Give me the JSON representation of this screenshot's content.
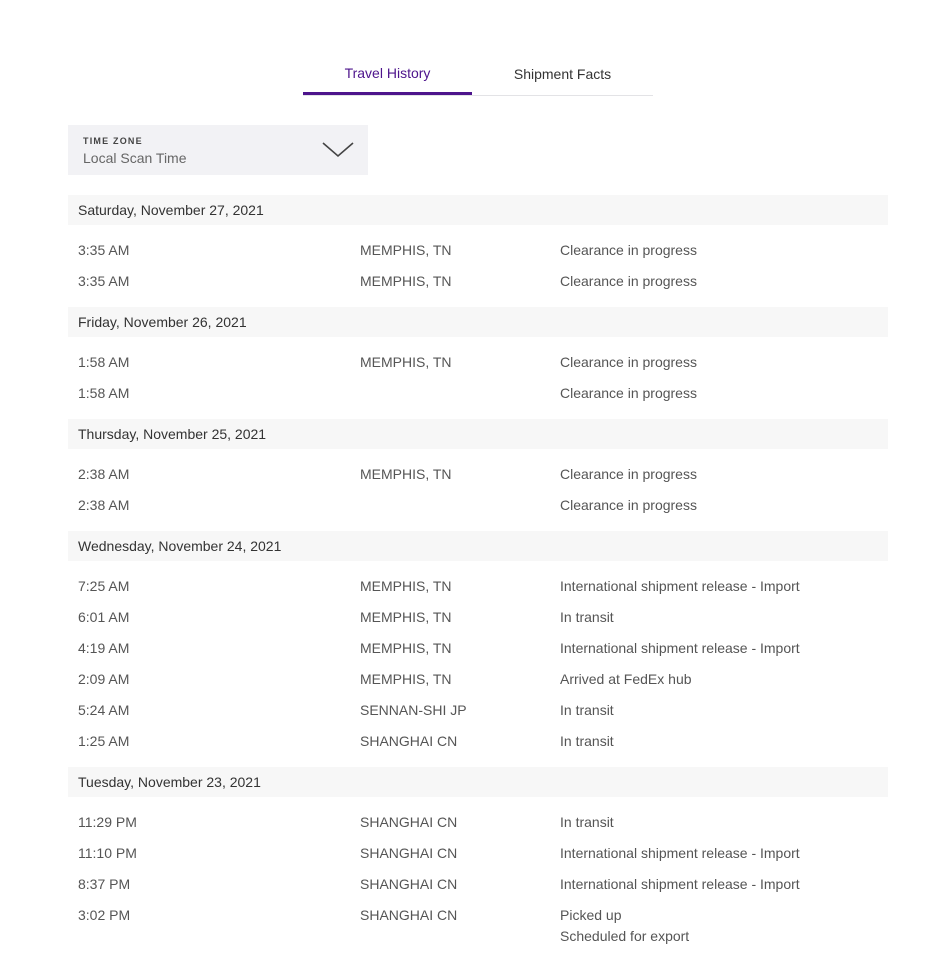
{
  "tabs": [
    {
      "label": "Travel History",
      "active": true
    },
    {
      "label": "Shipment Facts",
      "active": false
    }
  ],
  "timezone": {
    "label": "TIME ZONE",
    "value": "Local Scan Time",
    "icon": "chevron-down-icon"
  },
  "colors": {
    "accent": "#4d148c",
    "header_bg": "#f7f7f7",
    "dropdown_bg": "#f2f2f5"
  },
  "days": [
    {
      "date": "Saturday, November 27, 2021",
      "events": [
        {
          "time": "3:35 AM",
          "location": "MEMPHIS, TN",
          "status": [
            "Clearance in progress"
          ]
        },
        {
          "time": "3:35 AM",
          "location": "MEMPHIS, TN",
          "status": [
            "Clearance in progress"
          ]
        }
      ]
    },
    {
      "date": "Friday, November 26, 2021",
      "events": [
        {
          "time": "1:58 AM",
          "location": "MEMPHIS, TN",
          "status": [
            "Clearance in progress"
          ]
        },
        {
          "time": "1:58 AM",
          "location": "",
          "status": [
            "Clearance in progress"
          ]
        }
      ]
    },
    {
      "date": "Thursday, November 25, 2021",
      "events": [
        {
          "time": "2:38 AM",
          "location": "MEMPHIS, TN",
          "status": [
            "Clearance in progress"
          ]
        },
        {
          "time": "2:38 AM",
          "location": "",
          "status": [
            "Clearance in progress"
          ]
        }
      ]
    },
    {
      "date": "Wednesday, November 24, 2021",
      "events": [
        {
          "time": "7:25 AM",
          "location": "MEMPHIS, TN",
          "status": [
            "International shipment release - Import"
          ]
        },
        {
          "time": "6:01 AM",
          "location": "MEMPHIS, TN",
          "status": [
            "In transit"
          ]
        },
        {
          "time": "4:19 AM",
          "location": "MEMPHIS, TN",
          "status": [
            "International shipment release - Import"
          ]
        },
        {
          "time": "2:09 AM",
          "location": "MEMPHIS, TN",
          "status": [
            "Arrived at FedEx hub"
          ]
        },
        {
          "time": "5:24 AM",
          "location": "SENNAN-SHI JP",
          "status": [
            "In transit"
          ]
        },
        {
          "time": "1:25 AM",
          "location": "SHANGHAI CN",
          "status": [
            "In transit"
          ]
        }
      ]
    },
    {
      "date": "Tuesday, November 23, 2021",
      "events": [
        {
          "time": "11:29 PM",
          "location": "SHANGHAI CN",
          "status": [
            "In transit"
          ]
        },
        {
          "time": "11:10 PM",
          "location": "SHANGHAI CN",
          "status": [
            "International shipment release - Import"
          ]
        },
        {
          "time": "8:37 PM",
          "location": "SHANGHAI CN",
          "status": [
            "International shipment release - Import"
          ]
        },
        {
          "time": "3:02 PM",
          "location": "SHANGHAI CN",
          "status": [
            "Picked up",
            "Scheduled for export"
          ]
        }
      ]
    }
  ]
}
